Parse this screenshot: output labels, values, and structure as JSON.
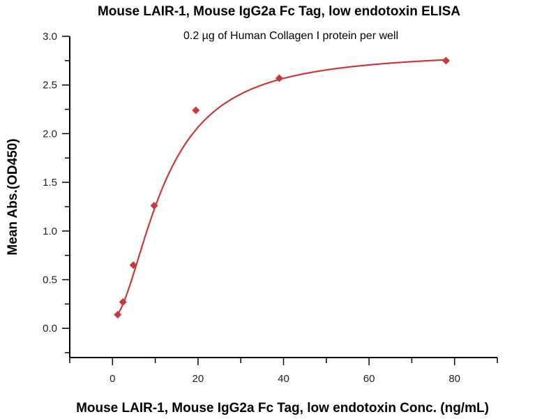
{
  "chart_data": {
    "type": "scatter",
    "title": "Mouse LAIR-1, Mouse IgG2a Fc Tag, low endotoxin ELISA",
    "subtitle": "0.2 µg of Human Collagen I protein per well",
    "xlabel": "Mouse LAIR-1, Mouse IgG2a Fc Tag, low endotoxin Conc. (ng/mL)",
    "ylabel": "Mean Abs.(OD450)",
    "xlim": [
      -10,
      90
    ],
    "ylim": [
      -0.3,
      3.0
    ],
    "xticks": [
      "0",
      "20",
      "40",
      "60",
      "80"
    ],
    "yticks": [
      "0.0",
      "0.5",
      "1.0",
      "1.5",
      "2.0",
      "2.5",
      "3.0"
    ],
    "grid": false,
    "series": [
      {
        "name": "Mean Abs.",
        "color": "#c8393b",
        "marker": "diamond",
        "x": [
          1.22,
          2.44,
          4.88,
          9.75,
          19.5,
          39,
          78
        ],
        "y": [
          0.14,
          0.27,
          0.65,
          1.26,
          2.24,
          2.57,
          2.75
        ],
        "fit": {
          "type": "4PL",
          "bottom": 0.1,
          "top": 2.85,
          "ec50": 12,
          "hill": 1.8
        }
      }
    ]
  }
}
